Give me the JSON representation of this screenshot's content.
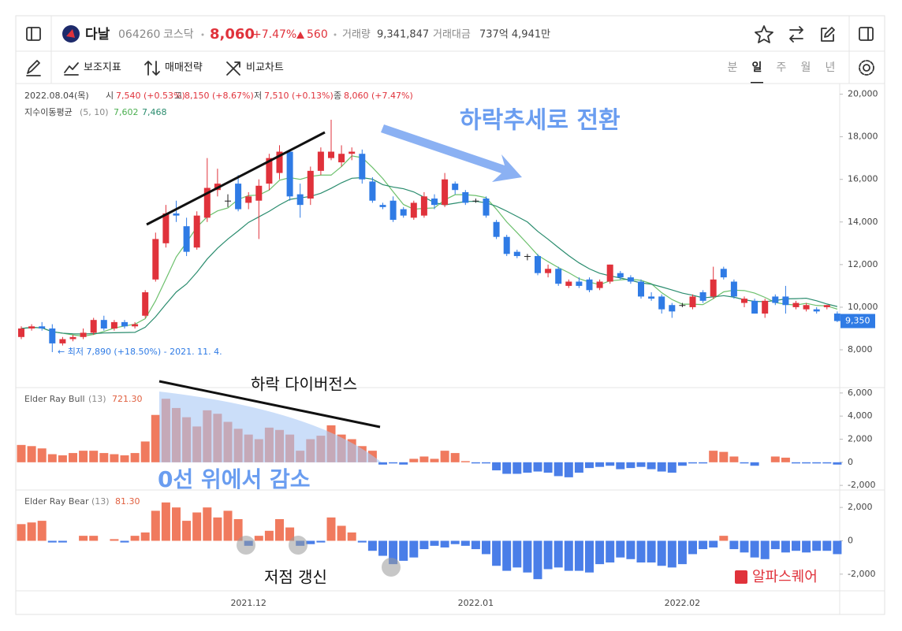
{
  "header": {
    "name": "다날",
    "code": "064260",
    "market": "코스닥",
    "price": "8,060",
    "change_pct": "+7.47%",
    "change": "560",
    "volume_label": "거래량",
    "volume": "9,341,847",
    "amount_label": "거래대금",
    "amount": "737억 4,941만"
  },
  "toolbar": {
    "items": [
      "보조지표",
      "매매전략",
      "비교차트"
    ],
    "tabs": [
      "분",
      "일",
      "주",
      "월",
      "년"
    ]
  },
  "info": {
    "date": "2022.08.04(목)",
    "fields": [
      {
        "label": "시",
        "value": "7,540 (+0.53%)"
      },
      {
        "label": "고",
        "value": "8,150 (+8.67%)"
      },
      {
        "label": "저",
        "value": "7,510 (+0.13%)"
      },
      {
        "label": "종",
        "value": "8,060 (+7.47%)"
      }
    ]
  },
  "ma_legend": {
    "name": "지수이동평균",
    "params": "(5, 10)",
    "ma5": "7,602",
    "ma10": "7,468"
  },
  "annotations": {
    "trend": "하락추세로 전환",
    "divergence": "하락 다이버전스",
    "decrease": "0선 위에서 감소",
    "new_low": "저점 갱신",
    "low_label": "← 최저 7,890 (+18.50%) - 2021. 11. 4.",
    "brand": "알파스퀘어"
  },
  "chart": {
    "type": "candlestick",
    "categories": [
      null,
      null,
      null,
      null,
      null,
      null,
      null,
      null,
      null,
      null,
      null,
      null,
      null,
      null,
      null,
      null,
      null,
      null,
      null,
      null,
      null,
      null,
      "2021.12",
      null,
      null,
      null,
      null,
      null,
      null,
      null,
      null,
      null,
      null,
      null,
      null,
      null,
      null,
      null,
      null,
      null,
      null,
      null,
      null,
      null,
      "2022.01",
      null,
      null,
      null,
      null,
      null,
      null,
      null,
      null,
      null,
      null,
      null,
      null,
      null,
      null,
      null,
      null,
      null,
      null,
      null,
      "2022.02",
      null,
      null,
      null,
      null,
      null,
      null,
      null,
      null,
      null,
      null,
      null,
      null,
      null,
      null,
      null
    ],
    "ylim": [
      6300,
      20500
    ],
    "yticks": [
      {
        "value": 20000,
        "label": "20,000"
      },
      {
        "value": 18000,
        "label": "18,000"
      },
      {
        "value": 16000,
        "label": "16,000"
      },
      {
        "value": 14000,
        "label": "14,000"
      },
      {
        "value": 12000,
        "label": "12,000"
      },
      {
        "value": 10000,
        "label": "10,000"
      },
      {
        "value": 8000,
        "label": "8,000"
      }
    ],
    "up_color": "#e0323b",
    "down_color": "#2f7be5",
    "flat_color": "#222",
    "candles": [
      [
        8600,
        9100,
        8500,
        9000
      ],
      [
        9000,
        9200,
        8900,
        9100
      ],
      [
        9100,
        9300,
        8900,
        9000
      ],
      [
        9000,
        9200,
        7890,
        8300
      ],
      [
        8300,
        8600,
        8200,
        8500
      ],
      [
        8500,
        8700,
        8400,
        8600
      ],
      [
        8600,
        9000,
        8500,
        8800
      ],
      [
        8800,
        9500,
        8700,
        9400
      ],
      [
        9400,
        9600,
        8900,
        9000
      ],
      [
        9000,
        9400,
        8900,
        9300
      ],
      [
        9300,
        9400,
        9000,
        9100
      ],
      [
        9100,
        9300,
        9000,
        9200
      ],
      [
        9600,
        10800,
        9500,
        10700
      ],
      [
        11300,
        13500,
        11200,
        13200
      ],
      [
        13000,
        14800,
        12800,
        14400
      ],
      [
        14400,
        15000,
        14000,
        14300
      ],
      [
        13800,
        14200,
        12400,
        12600
      ],
      [
        12800,
        14500,
        12700,
        14300
      ],
      [
        14200,
        17000,
        14000,
        15600
      ],
      [
        15500,
        16500,
        15200,
        15800
      ],
      [
        15000,
        15300,
        14700,
        15000
      ],
      [
        15800,
        16200,
        14500,
        14600
      ],
      [
        14900,
        15400,
        14600,
        15200
      ],
      [
        15000,
        16000,
        13200,
        15700
      ],
      [
        15800,
        17200,
        15500,
        17000
      ],
      [
        16300,
        17600,
        16000,
        17300
      ],
      [
        17300,
        17400,
        15000,
        15200
      ],
      [
        15300,
        15800,
        14200,
        14800
      ],
      [
        15100,
        16600,
        14800,
        16400
      ],
      [
        16400,
        17500,
        16200,
        17300
      ],
      [
        17000,
        18800,
        16900,
        17300
      ],
      [
        16800,
        17600,
        16600,
        17200
      ],
      [
        17200,
        17500,
        16900,
        17300
      ],
      [
        17200,
        17400,
        15800,
        16000
      ],
      [
        15900,
        16100,
        14900,
        15000
      ],
      [
        14800,
        14900,
        14600,
        14700
      ],
      [
        15000,
        15200,
        14000,
        14100
      ],
      [
        14600,
        14700,
        14200,
        14300
      ],
      [
        14200,
        15000,
        14100,
        14900
      ],
      [
        14300,
        15400,
        14200,
        15200
      ],
      [
        15100,
        15300,
        14600,
        14800
      ],
      [
        14800,
        16300,
        14700,
        16000
      ],
      [
        15800,
        15900,
        15300,
        15500
      ],
      [
        15400,
        15500,
        14800,
        14900
      ],
      [
        15000,
        15100,
        14900,
        15000
      ],
      [
        15100,
        15200,
        14200,
        14300
      ],
      [
        14000,
        14100,
        13200,
        13300
      ],
      [
        13300,
        13400,
        12400,
        12500
      ],
      [
        12600,
        12700,
        12300,
        12400
      ],
      [
        12400,
        12500,
        12200,
        12400
      ],
      [
        12400,
        12500,
        11500,
        11600
      ],
      [
        11600,
        12000,
        11400,
        11800
      ],
      [
        11800,
        11900,
        11000,
        11100
      ],
      [
        11000,
        11300,
        10900,
        11200
      ],
      [
        11200,
        11400,
        10900,
        11000
      ],
      [
        11300,
        11400,
        10700,
        10800
      ],
      [
        10900,
        11300,
        10800,
        11200
      ],
      [
        11200,
        12000,
        11100,
        12000
      ],
      [
        11600,
        11700,
        11300,
        11400
      ],
      [
        11400,
        11500,
        11100,
        11200
      ],
      [
        11200,
        11300,
        10400,
        10500
      ],
      [
        10500,
        10700,
        10300,
        10400
      ],
      [
        10500,
        10600,
        9700,
        9900
      ],
      [
        10100,
        10200,
        9500,
        9800
      ],
      [
        10100,
        10200,
        10000,
        10100
      ],
      [
        10000,
        10600,
        9900,
        10500
      ],
      [
        10700,
        10800,
        10200,
        10300
      ],
      [
        10500,
        11900,
        10400,
        11300
      ],
      [
        11800,
        11900,
        11300,
        11400
      ],
      [
        11200,
        11300,
        10400,
        10500
      ],
      [
        10200,
        10500,
        10000,
        10400
      ],
      [
        10300,
        10400,
        9700,
        9700
      ],
      [
        9700,
        10400,
        9500,
        10300
      ],
      [
        10500,
        10600,
        10100,
        10200
      ],
      [
        10500,
        11000,
        9700,
        10100
      ],
      [
        10000,
        10300,
        9900,
        10200
      ],
      [
        9900,
        10200,
        9800,
        10100
      ],
      [
        9900,
        10000,
        9700,
        9800
      ],
      [
        10000,
        10100,
        9900,
        10100
      ],
      [
        9700,
        9800,
        9300,
        9350
      ]
    ],
    "series": [
      {
        "name": "MA5",
        "color": "#6cc06c",
        "values": [
          9000,
          9050,
          9030,
          8850,
          8780,
          8700,
          8640,
          8720,
          8860,
          9020,
          9120,
          9200,
          9460,
          10300,
          11320,
          12360,
          13040,
          13760,
          14240,
          14520,
          14660,
          15060,
          15240,
          15260,
          15500,
          15960,
          16080,
          16000,
          16140,
          16200,
          16200,
          16600,
          17100,
          17020,
          16560,
          16040,
          15420,
          14820,
          14600,
          14640,
          14660,
          15040,
          15280,
          15280,
          15240,
          15140,
          14600,
          14000,
          13500,
          12980,
          12440,
          12140,
          11860,
          11620,
          11340,
          11180,
          11060,
          11240,
          11280,
          11320,
          11260,
          11100,
          10680,
          10360,
          10140,
          10140,
          10120,
          10400,
          10720,
          10800,
          10780,
          10660,
          10460,
          10220,
          10140,
          10100,
          10180,
          10080,
          10060,
          9910
        ]
      },
      {
        "name": "MA10",
        "color": "#2a8c6e",
        "values": [
          9000,
          9050,
          9030,
          8850,
          8780,
          8750,
          8740,
          8760,
          8790,
          8800,
          8810,
          8820,
          9060,
          9550,
          10140,
          10710,
          11090,
          11640,
          12260,
          12770,
          13200,
          13580,
          13980,
          14240,
          14500,
          14800,
          15060,
          15130,
          15200,
          15350,
          15580,
          15840,
          16050,
          16080,
          16010,
          15750,
          15640,
          15560,
          15410,
          15160,
          14910,
          14800,
          14880,
          14960,
          14970,
          14900,
          14740,
          14510,
          14260,
          14000,
          13560,
          13190,
          12800,
          12420,
          12080,
          11800,
          11590,
          11470,
          11370,
          11260,
          11140,
          11080,
          10950,
          10810,
          10660,
          10560,
          10440,
          10480,
          10540,
          10470,
          10350,
          10270,
          10260,
          10310,
          10390,
          10400,
          10420,
          10300,
          10150,
          10030
        ]
      }
    ],
    "last_price": {
      "value": 9350,
      "label": "9,350"
    }
  },
  "bull": {
    "type": "histogram",
    "name": "Elder Ray Bull",
    "params": "(13)",
    "current": "721.30",
    "ylim": [
      -2400,
      6400
    ],
    "yticks": [
      {
        "value": 6000,
        "label": "6,000"
      },
      {
        "value": 4000,
        "label": "4,000"
      },
      {
        "value": 2000,
        "label": "2,000"
      },
      0,
      {
        "value": -2000,
        "label": "-2,000"
      }
    ],
    "pos_color": "#f07a5e",
    "neg_color": "#4a7ee8",
    "values": [
      1500,
      1400,
      1200,
      700,
      600,
      800,
      1000,
      1000,
      800,
      700,
      600,
      800,
      1800,
      4100,
      5500,
      4700,
      3900,
      3100,
      4500,
      4200,
      3500,
      2900,
      2400,
      2000,
      3000,
      2800,
      2400,
      1000,
      2000,
      2300,
      3200,
      2400,
      2000,
      1400,
      1000,
      -200,
      -100,
      -200,
      300,
      500,
      300,
      1000,
      800,
      100,
      -100,
      -100,
      -700,
      -1000,
      -1000,
      -900,
      -800,
      -900,
      -1200,
      -1300,
      -900,
      -500,
      -400,
      -300,
      -600,
      -500,
      -400,
      -600,
      -800,
      -900,
      -300,
      -100,
      -100,
      1000,
      900,
      500,
      -100,
      -300,
      0,
      500,
      400,
      -100,
      -100,
      -100,
      -100,
      -200
    ]
  },
  "bear": {
    "type": "histogram",
    "name": "Elder Ray Bear",
    "params": "(13)",
    "current": "81.30",
    "ylim": [
      -3000,
      3000
    ],
    "yticks": [
      {
        "value": 2000,
        "label": "2,000"
      },
      0,
      {
        "value": -2000,
        "label": "-2,000"
      }
    ],
    "pos_color": "#f07a5e",
    "neg_color": "#4a7ee8",
    "values": [
      1000,
      1100,
      1200,
      -100,
      -100,
      0,
      300,
      300,
      0,
      100,
      -100,
      300,
      500,
      1800,
      2300,
      2000,
      1200,
      1700,
      2000,
      1400,
      1800,
      1300,
      -300,
      300,
      600,
      1300,
      800,
      -300,
      -200,
      -100,
      1400,
      900,
      500,
      -100,
      -600,
      -900,
      -1400,
      -1200,
      -1000,
      -500,
      -300,
      -400,
      -200,
      -300,
      -500,
      -800,
      -1500,
      -1800,
      -1600,
      -1900,
      -2300,
      -1700,
      -1600,
      -1800,
      -1800,
      -1900,
      -1400,
      -1300,
      -1000,
      -1100,
      -1300,
      -1300,
      -1500,
      -1600,
      -1400,
      -800,
      -500,
      -400,
      300,
      -500,
      -700,
      -1000,
      -1100,
      -500,
      -700,
      -600,
      -700,
      -600,
      -600,
      -800
    ]
  }
}
